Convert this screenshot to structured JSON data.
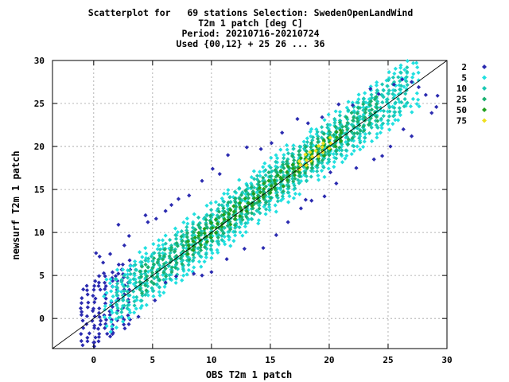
{
  "chart_data": {
    "type": "scatter",
    "title_lines": [
      "Scatterplot for   69 stations Selection: SwedenOpenLandWind",
      "T2m 1 patch [deg C]",
      "Period: 20210716-20210724",
      "Used {00,12} + 25 26 ... 36"
    ],
    "xlabel": "OBS T2m 1 patch",
    "ylabel": "newsurf T2m 1 patch",
    "xlim": [
      -3.5,
      30
    ],
    "ylim": [
      -3.5,
      30
    ],
    "xticks": [
      0,
      5,
      10,
      15,
      20,
      25,
      30
    ],
    "yticks": [
      0,
      5,
      10,
      15,
      20,
      25,
      30
    ],
    "grid": true,
    "diagonal_line": true,
    "legend": {
      "position": "right",
      "entries": [
        {
          "label": "2",
          "color": "#2b2bb0"
        },
        {
          "label": "5",
          "color": "#22e0e0"
        },
        {
          "label": "10",
          "color": "#1cc8b4"
        },
        {
          "label": "25",
          "color": "#1ab070"
        },
        {
          "label": "50",
          "color": "#22a020"
        },
        {
          "label": "75",
          "color": "#f0e020"
        }
      ]
    },
    "density_bins": [
      {
        "min_x": -1.0,
        "max_x": 3.0,
        "level": 2,
        "offset": 1.6
      },
      {
        "min_x": 1.0,
        "max_x": 27.5,
        "level": 5,
        "offset": 1.3
      },
      {
        "min_x": 2.0,
        "max_x": 26.5,
        "level": 10,
        "offset": 0.9
      },
      {
        "min_x": 4.0,
        "max_x": 24.0,
        "level": 25,
        "offset": 0.6
      },
      {
        "min_x": 8.0,
        "max_x": 21.0,
        "level": 50,
        "offset": 0.35
      },
      {
        "min_x": 17.5,
        "max_x": 20.0,
        "level": 75,
        "offset": 0.2
      }
    ],
    "outliers": [
      [
        0.2,
        7.6
      ],
      [
        0.5,
        7.2
      ],
      [
        0.8,
        6.5
      ],
      [
        1.4,
        7.5
      ],
      [
        2.1,
        10.9
      ],
      [
        3.0,
        9.6
      ],
      [
        2.6,
        8.5
      ],
      [
        4.4,
        12.0
      ],
      [
        4.6,
        11.2
      ],
      [
        5.3,
        11.6
      ],
      [
        6.1,
        12.5
      ],
      [
        6.6,
        13.2
      ],
      [
        7.2,
        13.9
      ],
      [
        8.1,
        14.3
      ],
      [
        9.2,
        16.0
      ],
      [
        10.1,
        17.4
      ],
      [
        10.7,
        16.8
      ],
      [
        11.4,
        19.0
      ],
      [
        13.0,
        19.9
      ],
      [
        14.2,
        19.7
      ],
      [
        15.1,
        20.4
      ],
      [
        16.0,
        21.6
      ],
      [
        17.3,
        23.2
      ],
      [
        18.2,
        22.7
      ],
      [
        19.4,
        23.4
      ],
      [
        20.8,
        24.9
      ],
      [
        22.0,
        24.8
      ],
      [
        23.5,
        26.7
      ],
      [
        24.2,
        26.1
      ],
      [
        25.5,
        27.2
      ],
      [
        26.2,
        27.8
      ],
      [
        27.0,
        27.5
      ],
      [
        0.0,
        -2.8
      ],
      [
        1.6,
        -1.8
      ],
      [
        3.8,
        0.2
      ],
      [
        5.2,
        2.1
      ],
      [
        6.1,
        4.2
      ],
      [
        7.0,
        4.9
      ],
      [
        8.5,
        5.2
      ],
      [
        9.2,
        5.0
      ],
      [
        10.0,
        5.4
      ],
      [
        11.3,
        6.9
      ],
      [
        12.8,
        8.1
      ],
      [
        14.4,
        8.2
      ],
      [
        15.5,
        9.7
      ],
      [
        16.5,
        11.2
      ],
      [
        17.6,
        12.8
      ],
      [
        18.5,
        13.7
      ],
      [
        19.6,
        14.2
      ],
      [
        20.6,
        15.7
      ],
      [
        22.3,
        17.5
      ],
      [
        23.8,
        18.5
      ],
      [
        24.5,
        18.9
      ],
      [
        25.2,
        20.0
      ],
      [
        26.3,
        22.0
      ],
      [
        27.0,
        21.2
      ],
      [
        28.7,
        23.9
      ],
      [
        29.1,
        24.6
      ],
      [
        28.2,
        26.0
      ],
      [
        27.6,
        26.9
      ],
      [
        29.2,
        25.9
      ],
      [
        20.1,
        17.0
      ],
      [
        18.0,
        13.8
      ]
    ]
  }
}
